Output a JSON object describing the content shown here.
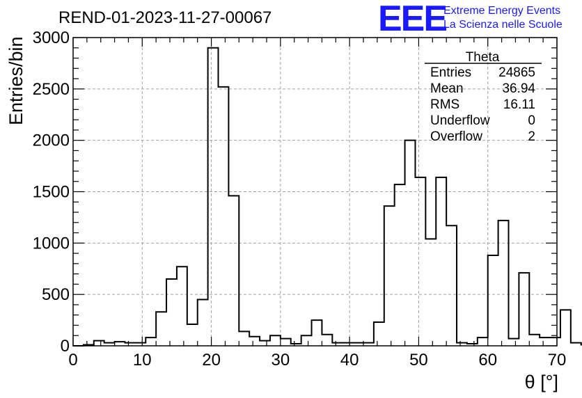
{
  "chart_data": {
    "type": "bar",
    "title": "REND-01-2023-11-27-00067",
    "xlabel": "θ [°]",
    "ylabel": "Entries/bin",
    "xlim": [
      0,
      70
    ],
    "ylim": [
      0,
      3000
    ],
    "x_ticks": [
      0,
      10,
      20,
      30,
      40,
      50,
      60,
      70
    ],
    "y_ticks": [
      0,
      500,
      1000,
      1500,
      2000,
      2500,
      3000
    ],
    "grid": true,
    "bin_width": 1.5,
    "bin_start": 0,
    "values": [
      0,
      10,
      50,
      30,
      40,
      30,
      30,
      80,
      330,
      650,
      770,
      210,
      450,
      2900,
      2520,
      1460,
      140,
      90,
      50,
      100,
      70,
      20,
      100,
      250,
      110,
      30,
      30,
      30,
      30,
      230,
      1360,
      1570,
      2000,
      1640,
      1040,
      1640,
      1170,
      30,
      20,
      80,
      880,
      1220,
      70,
      710,
      110,
      80,
      80,
      350,
      30,
      10
    ],
    "stats_box": {
      "title": "Theta",
      "rows": [
        {
          "label": "Entries",
          "value": "24865"
        },
        {
          "label": "Mean",
          "value": "36.94"
        },
        {
          "label": "RMS",
          "value": "16.11"
        },
        {
          "label": "Underflow",
          "value": "0"
        },
        {
          "label": "Overflow",
          "value": "2"
        }
      ]
    }
  },
  "logo": {
    "mark": "EEE",
    "line1": "Extreme Energy Events",
    "line2": "La Scienza nelle Scuole",
    "color": "#1a1aff"
  }
}
